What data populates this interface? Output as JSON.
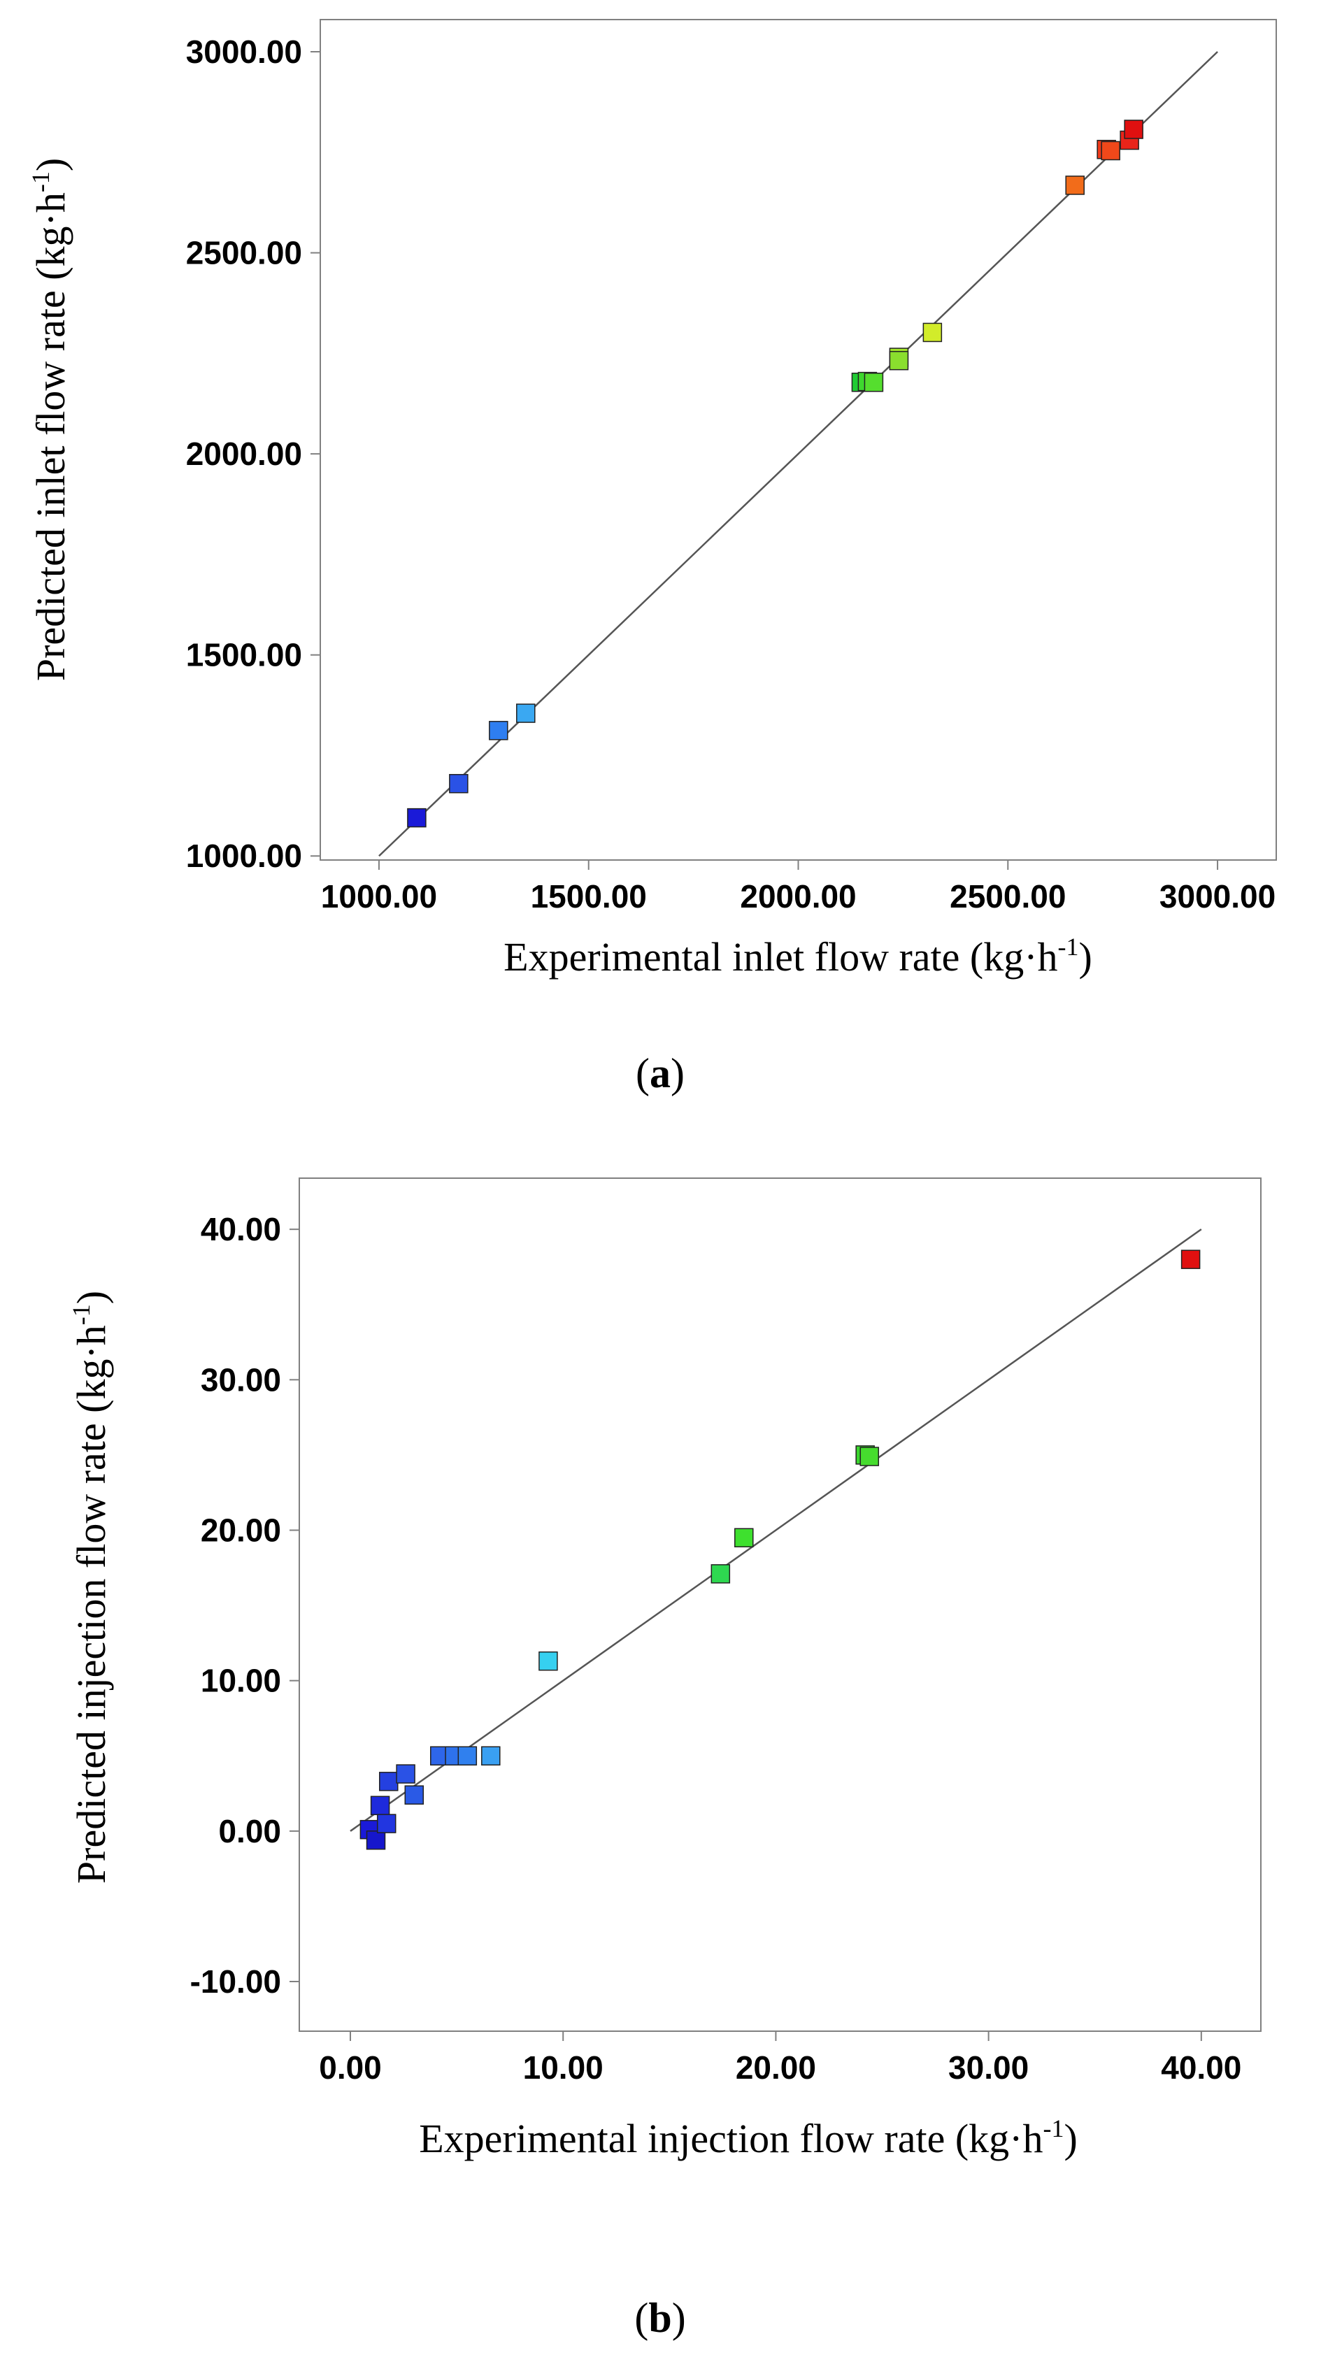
{
  "chart_data": [
    {
      "type": "scatter",
      "panel_label": "a",
      "xlabel": "Experimental inlet flow rate (kg·h",
      "ylabel": "Predicted inlet flow rate (kg·h",
      "unit_exponent": "-1",
      "xlim": [
        860,
        3140
      ],
      "ylim": [
        990,
        3080
      ],
      "xticks": [
        1000,
        1500,
        2000,
        2500,
        3000
      ],
      "yticks": [
        1000,
        1500,
        2000,
        2500,
        3000
      ],
      "xtick_labels": [
        "1000.00",
        "1500.00",
        "2000.00",
        "2500.00",
        "3000.00"
      ],
      "ytick_labels": [
        "1000.00",
        "1500.00",
        "2000.00",
        "2500.00",
        "3000.00"
      ],
      "reference_line": [
        [
          1000,
          1000
        ],
        [
          3000,
          3000
        ]
      ],
      "points": [
        {
          "x": 1090,
          "y": 1095,
          "color": "#1a1ad8"
        },
        {
          "x": 1190,
          "y": 1180,
          "color": "#2a52e6"
        },
        {
          "x": 1285,
          "y": 1312,
          "color": "#2e7ef0"
        },
        {
          "x": 1350,
          "y": 1355,
          "color": "#3aa8f2"
        },
        {
          "x": 2150,
          "y": 2178,
          "color": "#20cc34"
        },
        {
          "x": 2165,
          "y": 2180,
          "color": "#3ed82e"
        },
        {
          "x": 2180,
          "y": 2178,
          "color": "#55de2e"
        },
        {
          "x": 2240,
          "y": 2240,
          "color": "#a4e82a"
        },
        {
          "x": 2240,
          "y": 2232,
          "color": "#8ade2e"
        },
        {
          "x": 2320,
          "y": 2302,
          "color": "#d2ec2a"
        },
        {
          "x": 2660,
          "y": 2668,
          "color": "#f26c1a"
        },
        {
          "x": 2735,
          "y": 2757,
          "color": "#ee3a1a"
        },
        {
          "x": 2745,
          "y": 2754,
          "color": "#f0481a"
        },
        {
          "x": 2790,
          "y": 2780,
          "color": "#e8241a"
        },
        {
          "x": 2800,
          "y": 2807,
          "color": "#e01010"
        }
      ]
    },
    {
      "type": "scatter",
      "panel_label": "b",
      "xlabel": "Experimental injection flow rate (kg·h",
      "ylabel": "Predicted injection flow rate (kg·h",
      "unit_exponent": "-1",
      "xlim": [
        -2.4,
        42.8
      ],
      "ylim": [
        -13.3,
        43.4
      ],
      "xticks": [
        0,
        10,
        20,
        30,
        40
      ],
      "yticks": [
        -10,
        0,
        10,
        20,
        30,
        40
      ],
      "xtick_labels": [
        "0.00",
        "10.00",
        "20.00",
        "30.00",
        "40.00"
      ],
      "ytick_labels": [
        "-10.00",
        "0.00",
        "10.00",
        "20.00",
        "30.00",
        "40.00"
      ],
      "reference_line": [
        [
          0,
          0
        ],
        [
          40,
          40
        ]
      ],
      "points": [
        {
          "x": 0.9,
          "y": 0.1,
          "color": "#1a1ad8"
        },
        {
          "x": 1.2,
          "y": -0.6,
          "color": "#1616cc"
        },
        {
          "x": 1.4,
          "y": 1.7,
          "color": "#1e2adc"
        },
        {
          "x": 1.7,
          "y": 0.5,
          "color": "#2236e0"
        },
        {
          "x": 1.8,
          "y": 3.3,
          "color": "#2440e0"
        },
        {
          "x": 2.6,
          "y": 3.8,
          "color": "#2a52e6"
        },
        {
          "x": 3.0,
          "y": 2.4,
          "color": "#2a5ae6"
        },
        {
          "x": 4.2,
          "y": 5.0,
          "color": "#2e66ea"
        },
        {
          "x": 4.9,
          "y": 5.0,
          "color": "#2e72ec"
        },
        {
          "x": 5.5,
          "y": 5.0,
          "color": "#3080ee"
        },
        {
          "x": 6.6,
          "y": 5.0,
          "color": "#3aa0f2"
        },
        {
          "x": 9.3,
          "y": 11.3,
          "color": "#36d0f0"
        },
        {
          "x": 17.4,
          "y": 17.1,
          "color": "#2ed850"
        },
        {
          "x": 18.5,
          "y": 19.5,
          "color": "#3ee02e"
        },
        {
          "x": 24.2,
          "y": 25.0,
          "color": "#3ad62e"
        },
        {
          "x": 24.4,
          "y": 24.9,
          "color": "#46dc2e"
        },
        {
          "x": 39.5,
          "y": 38.0,
          "color": "#e01010"
        }
      ]
    }
  ]
}
